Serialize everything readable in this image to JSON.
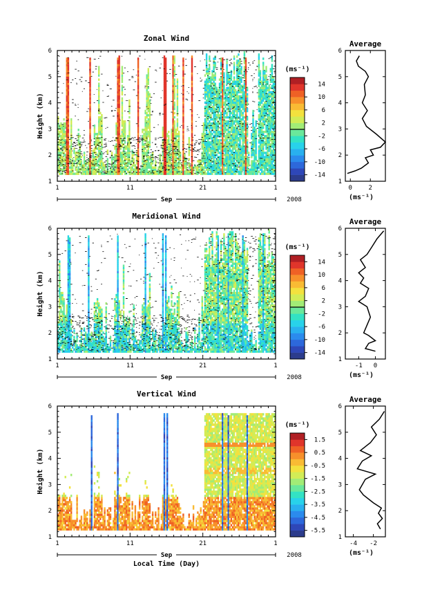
{
  "chart_data": [
    {
      "type": "heatmap",
      "title": "Zonal Wind",
      "ylabel": "Height (km)",
      "xlabel": "Sep",
      "year": "2008",
      "x_ticks": [
        "1",
        "11",
        "21",
        "1"
      ],
      "y_ticks": [
        "1",
        "2",
        "3",
        "4",
        "5",
        "6"
      ],
      "ylim": [
        1,
        6
      ],
      "colorbar": {
        "unit": "(ms⁻¹)",
        "labels": [
          "14",
          "10",
          "6",
          "2",
          "-2",
          "-6",
          "-10",
          "-14"
        ],
        "min": -16,
        "max": 16,
        "zero_line": 0
      },
      "average": {
        "title": "Average",
        "xlabel": "(ms⁻¹)",
        "x_ticks": [
          "0",
          "2"
        ],
        "x_tick_values": [
          0,
          2
        ],
        "xlim": [
          -0.5,
          3.5
        ],
        "profile": [
          [
            -0.3,
            1.3
          ],
          [
            0.5,
            1.4
          ],
          [
            1.1,
            1.5
          ],
          [
            1.8,
            1.7
          ],
          [
            1.5,
            1.9
          ],
          [
            2.3,
            2.0
          ],
          [
            2.0,
            2.2
          ],
          [
            3.0,
            2.3
          ],
          [
            3.5,
            2.5
          ],
          [
            2.6,
            2.8
          ],
          [
            1.6,
            3.1
          ],
          [
            1.2,
            3.4
          ],
          [
            1.7,
            3.7
          ],
          [
            1.2,
            4.0
          ],
          [
            1.5,
            4.3
          ],
          [
            1.4,
            4.7
          ],
          [
            1.8,
            5.0
          ],
          [
            1.5,
            5.2
          ],
          [
            0.8,
            5.4
          ],
          [
            0.6,
            5.6
          ],
          [
            0.9,
            5.8
          ]
        ]
      }
    },
    {
      "type": "heatmap",
      "title": "Meridional Wind",
      "ylabel": "Height (km)",
      "xlabel": "Sep",
      "year": "2008",
      "x_ticks": [
        "1",
        "11",
        "21",
        "1"
      ],
      "y_ticks": [
        "1",
        "2",
        "3",
        "4",
        "5",
        "6"
      ],
      "ylim": [
        1,
        6
      ],
      "colorbar": {
        "unit": "(ms⁻¹)",
        "labels": [
          "14",
          "10",
          "6",
          "2",
          "-2",
          "-6",
          "-10",
          "-14"
        ],
        "min": -16,
        "max": 16,
        "zero_line": 0
      },
      "average": {
        "title": "Average",
        "xlabel": "(ms⁻¹)",
        "x_ticks": [
          "-1",
          "0"
        ],
        "x_tick_values": [
          -1,
          0
        ],
        "xlim": [
          -1.8,
          0.6
        ],
        "profile": [
          [
            0.0,
            1.3
          ],
          [
            -0.6,
            1.4
          ],
          [
            -0.4,
            1.6
          ],
          [
            0.0,
            1.7
          ],
          [
            -0.4,
            1.9
          ],
          [
            -0.7,
            2.0
          ],
          [
            -0.5,
            2.3
          ],
          [
            -0.3,
            2.6
          ],
          [
            -0.5,
            3.0
          ],
          [
            -1.0,
            3.2
          ],
          [
            -0.6,
            3.4
          ],
          [
            -0.4,
            3.7
          ],
          [
            -0.9,
            3.9
          ],
          [
            -0.7,
            4.1
          ],
          [
            -1.0,
            4.3
          ],
          [
            -0.6,
            4.5
          ],
          [
            -0.9,
            4.8
          ],
          [
            -0.5,
            5.0
          ],
          [
            -0.2,
            5.3
          ],
          [
            0.1,
            5.6
          ],
          [
            0.5,
            5.9
          ]
        ]
      }
    },
    {
      "type": "heatmap",
      "title": "Vertical Wind",
      "ylabel": "Height (km)",
      "xlabel": "Local Time (Day)",
      "month": "Sep",
      "year": "2008",
      "x_ticks": [
        "1",
        "11",
        "21",
        "1"
      ],
      "y_ticks": [
        "1",
        "2",
        "3",
        "4",
        "5",
        "6"
      ],
      "ylim": [
        1,
        6
      ],
      "colorbar": {
        "unit": "(ms⁻¹)",
        "labels": [
          "1.5",
          "0.5",
          "-0.5",
          "-1.5",
          "-2.5",
          "-3.5",
          "-4.5",
          "-5.5"
        ],
        "min": -6,
        "max": 2
      },
      "average": {
        "title": "Average",
        "xlabel": "(ms⁻¹)",
        "x_ticks": [
          "-4",
          "-2"
        ],
        "x_tick_values": [
          -4,
          -2
        ],
        "xlim": [
          -4.8,
          -0.8
        ],
        "profile": [
          [
            -1.3,
            1.3
          ],
          [
            -1.6,
            1.5
          ],
          [
            -1.1,
            1.7
          ],
          [
            -1.5,
            1.9
          ],
          [
            -1.2,
            2.1
          ],
          [
            -2.0,
            2.3
          ],
          [
            -3.0,
            2.6
          ],
          [
            -3.4,
            2.8
          ],
          [
            -2.8,
            3.2
          ],
          [
            -1.8,
            3.4
          ],
          [
            -3.6,
            3.6
          ],
          [
            -3.1,
            3.9
          ],
          [
            -2.2,
            4.1
          ],
          [
            -3.3,
            4.3
          ],
          [
            -2.3,
            4.6
          ],
          [
            -1.7,
            4.9
          ],
          [
            -2.2,
            5.2
          ],
          [
            -1.4,
            5.5
          ],
          [
            -0.9,
            5.8
          ]
        ]
      }
    }
  ]
}
